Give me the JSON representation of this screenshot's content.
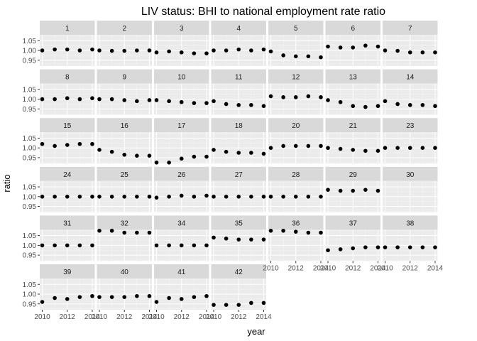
{
  "chart_data": {
    "type": "scatter",
    "title": "LIV status: BHI to national employment rate ratio",
    "xlabel": "year",
    "ylabel": "ratio",
    "x": [
      2010,
      2011,
      2012,
      2013,
      2014
    ],
    "xticks": [
      2010,
      2012,
      2014
    ],
    "xtick_labels": [
      "2010",
      "2012",
      "2014"
    ],
    "ylim": [
      0.92,
      1.08
    ],
    "yticks": [
      0.95,
      1.0,
      1.05
    ],
    "ytick_labels": [
      "0.95",
      "1.00",
      "1.05"
    ],
    "grid": true,
    "layout": {
      "cols": 7,
      "rows": 6
    },
    "panels": [
      {
        "label": "1",
        "values": [
          1.0,
          1.005,
          1.005,
          1.0,
          1.005
        ]
      },
      {
        "label": "2",
        "values": [
          1.0,
          0.998,
          0.998,
          1.0,
          1.0
        ]
      },
      {
        "label": "3",
        "values": [
          0.99,
          0.995,
          0.99,
          0.985,
          0.985
        ]
      },
      {
        "label": "4",
        "values": [
          1.0,
          1.0,
          1.005,
          1.0,
          1.005
        ]
      },
      {
        "label": "5",
        "values": [
          0.995,
          0.975,
          0.97,
          0.97,
          0.965
        ]
      },
      {
        "label": "6",
        "values": [
          1.02,
          1.015,
          1.015,
          1.025,
          1.02
        ]
      },
      {
        "label": "7",
        "values": [
          1.0,
          0.998,
          0.99,
          0.99,
          0.99
        ]
      },
      {
        "label": "8",
        "values": [
          1.0,
          1.0,
          1.005,
          1.0,
          1.005
        ]
      },
      {
        "label": "9",
        "values": [
          1.0,
          1.0,
          0.995,
          0.99,
          0.995
        ]
      },
      {
        "label": "10",
        "values": [
          0.995,
          0.99,
          0.985,
          0.98,
          0.98
        ]
      },
      {
        "label": "11",
        "values": [
          0.99,
          0.975,
          0.97,
          0.97,
          0.965
        ]
      },
      {
        "label": "12",
        "values": [
          1.015,
          1.01,
          1.01,
          1.015,
          1.01
        ]
      },
      {
        "label": "13",
        "values": [
          0.995,
          0.985,
          0.965,
          0.96,
          0.965
        ]
      },
      {
        "label": "14",
        "values": [
          0.99,
          0.975,
          0.97,
          0.97,
          0.965
        ]
      },
      {
        "label": "15",
        "values": [
          1.02,
          1.01,
          1.015,
          1.02,
          1.02
        ]
      },
      {
        "label": "16",
        "values": [
          0.99,
          0.98,
          0.965,
          0.96,
          0.96
        ]
      },
      {
        "label": "17",
        "values": [
          0.925,
          0.925,
          0.945,
          0.955,
          0.955
        ]
      },
      {
        "label": "18",
        "values": [
          0.99,
          0.98,
          0.975,
          0.975,
          0.97
        ]
      },
      {
        "label": "20",
        "values": [
          1.0,
          1.01,
          1.01,
          1.01,
          1.01
        ]
      },
      {
        "label": "21",
        "values": [
          1.0,
          0.995,
          0.99,
          0.985,
          0.985
        ]
      },
      {
        "label": "23",
        "values": [
          1.0,
          1.0,
          1.0,
          1.0,
          1.0
        ]
      },
      {
        "label": "24",
        "values": [
          1.0,
          1.0,
          1.0,
          1.0,
          1.0
        ]
      },
      {
        "label": "25",
        "values": [
          1.0,
          1.0,
          1.0,
          1.0,
          1.0
        ]
      },
      {
        "label": "26",
        "values": [
          0.995,
          1.0,
          1.005,
          1.0,
          1.005
        ]
      },
      {
        "label": "27",
        "values": [
          1.0,
          1.0,
          1.0,
          1.0,
          1.0
        ]
      },
      {
        "label": "28",
        "values": [
          1.0,
          1.0,
          1.0,
          1.0,
          1.0
        ]
      },
      {
        "label": "29",
        "values": [
          1.035,
          1.03,
          1.03,
          1.035,
          1.03
        ]
      },
      {
        "label": "30",
        "values": []
      },
      {
        "label": "31",
        "values": [
          1.0,
          1.0,
          1.0,
          1.0,
          1.0
        ]
      },
      {
        "label": "32",
        "values": [
          1.075,
          1.075,
          1.065,
          1.065,
          1.065
        ]
      },
      {
        "label": "34",
        "values": [
          1.0,
          1.0,
          1.0,
          1.0,
          1.0
        ]
      },
      {
        "label": "35",
        "values": [
          1.04,
          1.035,
          1.03,
          1.03,
          1.03
        ]
      },
      {
        "label": "36",
        "values": [
          1.075,
          1.075,
          1.07,
          1.065,
          1.065
        ]
      },
      {
        "label": "37",
        "values": [
          0.975,
          0.98,
          0.985,
          0.99,
          0.99
        ]
      },
      {
        "label": "38",
        "values": [
          0.99,
          0.99,
          0.99,
          0.99,
          0.99
        ]
      },
      {
        "label": "39",
        "values": [
          0.96,
          0.98,
          0.975,
          0.985,
          0.99
        ]
      },
      {
        "label": "40",
        "values": [
          0.985,
          0.985,
          0.985,
          0.99,
          0.99
        ]
      },
      {
        "label": "41",
        "values": [
          0.96,
          0.98,
          0.975,
          0.985,
          0.99
        ]
      },
      {
        "label": "42",
        "values": [
          0.945,
          0.945,
          0.945,
          0.955,
          0.955
        ]
      }
    ]
  },
  "colors": {
    "panel_background": "#ebebeb",
    "grid_major": "#ffffff",
    "strip_background": "#d9d9d9",
    "point": "#000000",
    "tick_text": "#4d4d4d"
  }
}
